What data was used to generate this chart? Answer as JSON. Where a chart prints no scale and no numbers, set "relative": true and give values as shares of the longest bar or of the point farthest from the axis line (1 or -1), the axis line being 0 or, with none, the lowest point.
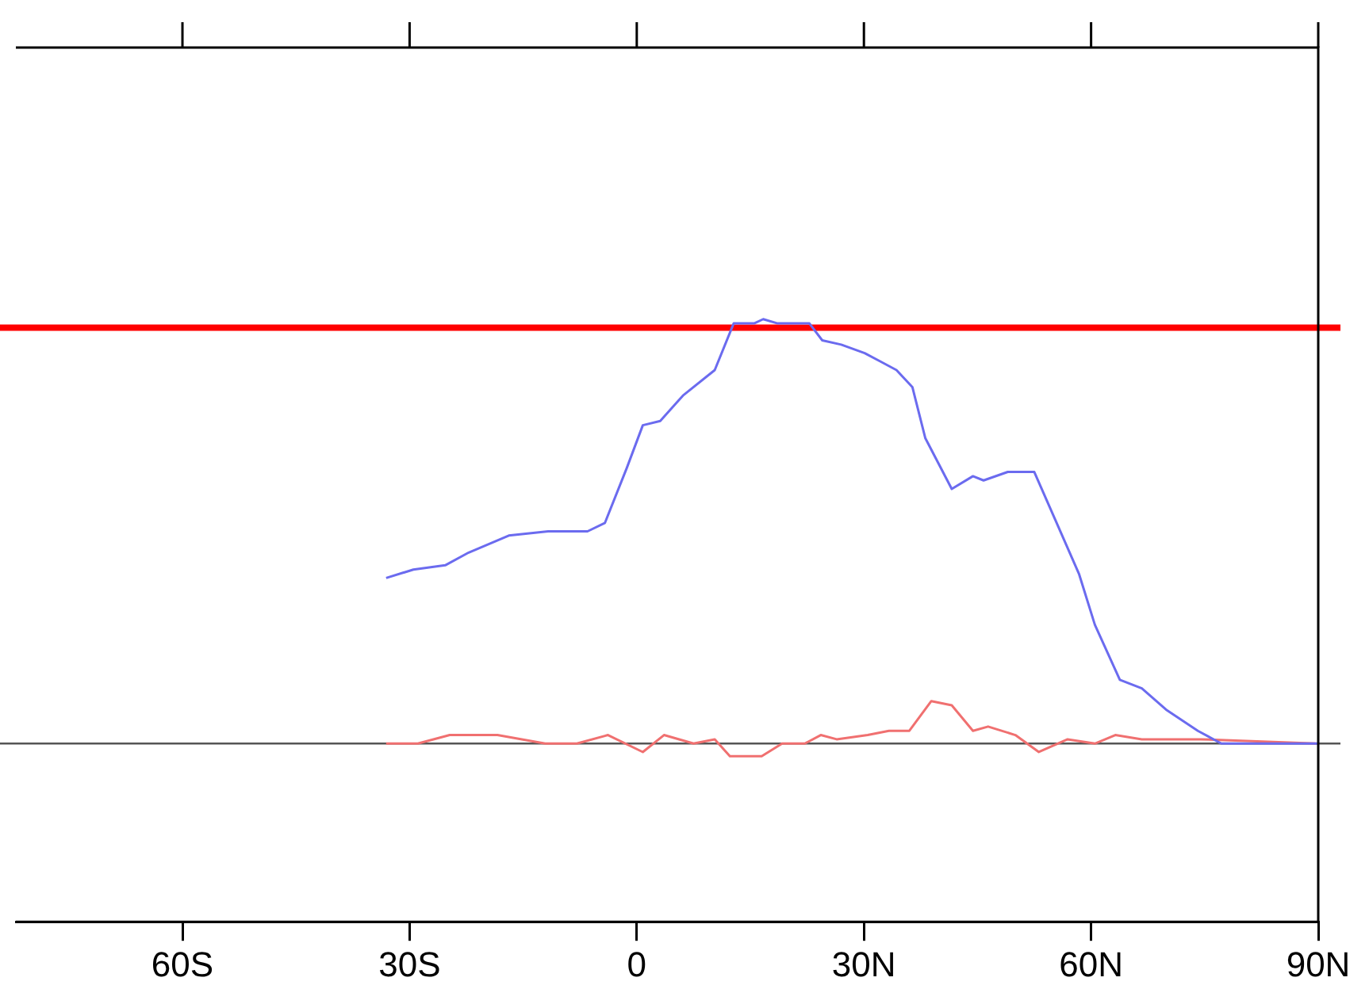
{
  "chart_data": {
    "type": "line",
    "relative": true,
    "grid": false,
    "legend": false,
    "marker": "none",
    "line_style": "solid",
    "xlim": [
      -82,
      90
    ],
    "xticks": [
      {
        "value": -60,
        "label": "60S"
      },
      {
        "value": -30,
        "label": "30S"
      },
      {
        "value": 0,
        "label": "0"
      },
      {
        "value": 30,
        "label": "30N"
      },
      {
        "value": 60,
        "label": "60N"
      },
      {
        "value": 90,
        "label": "90N"
      }
    ],
    "series": [
      {
        "color": "#6b6bef",
        "x": [
          -33.1,
          -29.5,
          -25.3,
          -22.2,
          -16.9,
          -11.7,
          -6.5,
          -4.2,
          -1.3,
          0.8,
          3.1,
          6.1,
          10.3,
          12.8,
          15.5,
          16.7,
          18.6,
          20.7,
          22.8,
          24.5,
          27.0,
          30.1,
          32.2,
          34.3,
          36.4,
          38.1,
          41.6,
          44.4,
          45.8,
          49.0,
          52.5,
          55.2,
          58.4,
          60.5,
          63.8,
          66.7,
          69.9,
          74.1,
          77.2,
          83.5,
          90
        ],
        "values": [
          0.39,
          0.41,
          0.42,
          0.45,
          0.49,
          0.5,
          0.5,
          0.52,
          0.65,
          0.75,
          0.76,
          0.82,
          0.88,
          0.99,
          0.99,
          1,
          0.99,
          0.99,
          0.99,
          0.95,
          0.94,
          0.92,
          0.9,
          0.88,
          0.84,
          0.72,
          0.6,
          0.63,
          0.62,
          0.64,
          0.64,
          0.53,
          0.4,
          0.28,
          0.15,
          0.13,
          0.08,
          0.03,
          0,
          0,
          0
        ]
      },
      {
        "color": "#f07070",
        "x": [
          -33.1,
          -28.9,
          -24.7,
          -18.4,
          -12.1,
          -7.9,
          -3.8,
          0.8,
          3.6,
          7.5,
          10.3,
          12.3,
          16.5,
          19.2,
          22.2,
          24.3,
          26.4,
          30.5,
          33.3,
          36.0,
          38.9,
          41.6,
          44.4,
          46.4,
          50.0,
          53.1,
          56.9,
          60.5,
          63.2,
          66.7,
          74.5,
          89.7
        ],
        "values": [
          0,
          0,
          0.02,
          0.02,
          0,
          0,
          0.02,
          -0.02,
          0.02,
          0,
          0.01,
          -0.03,
          -0.03,
          0,
          0,
          0.02,
          0.01,
          0.02,
          0.03,
          0.03,
          0.1,
          0.09,
          0.03,
          0.04,
          0.02,
          -0.02,
          0.01,
          0,
          0.02,
          0.01,
          0.01,
          0
        ]
      }
    ],
    "ref_lines": [
      {
        "axis": "y",
        "value": 0,
        "color": "#555555"
      },
      {
        "axis": "y",
        "value": 0.98,
        "color": "#ff0000"
      }
    ]
  }
}
